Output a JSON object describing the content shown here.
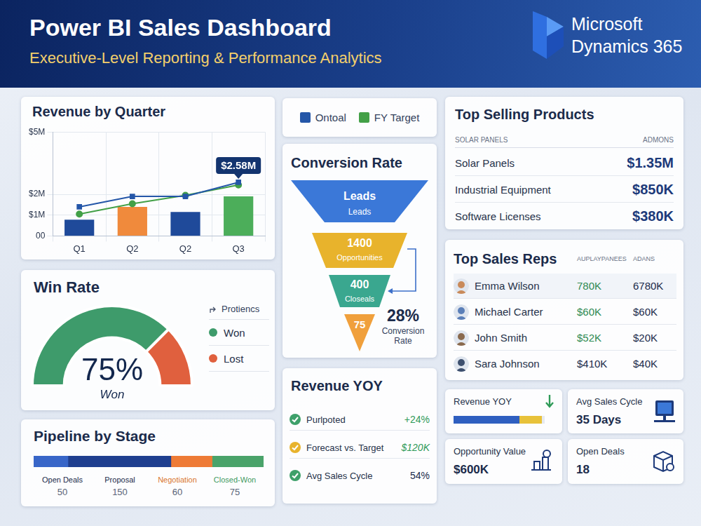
{
  "header": {
    "title": "Power BI Sales Dashboard",
    "subtitle": "Executive-Level Reporting & Performance Analytics",
    "logo": [
      "Microsoft",
      "Dynamics 365"
    ]
  },
  "chart_data": [
    {
      "type": "bar",
      "title": "Revenue by Quarter",
      "categories": [
        "Q1",
        "Q2",
        "Q2",
        "Q3"
      ],
      "values": [
        0.78,
        1.4,
        1.15,
        1.9
      ],
      "colors": [
        "#1f4a9a",
        "#f08a3c",
        "#1f4a9a",
        "#4cae5a"
      ],
      "series": [
        {
          "name": "Ontoal",
          "type": "line",
          "color": "#2456a8",
          "marker": "square",
          "values": [
            1.4,
            1.9,
            1.9,
            2.58
          ]
        },
        {
          "name": "FY Target",
          "type": "line",
          "color": "#43a047",
          "marker": "circle",
          "values": [
            1.05,
            1.55,
            1.95,
            2.45
          ]
        }
      ],
      "annotations": [
        {
          "text": "$2.58M",
          "x": "Q3",
          "y": 2.58
        }
      ],
      "ylim": [
        0,
        5
      ],
      "yticks": [
        {
          "value": 0,
          "label": "00"
        },
        {
          "value": 1,
          "label": "$1M"
        },
        {
          "value": 2,
          "label": "$2M"
        },
        {
          "value": 5,
          "label": "$5M"
        }
      ],
      "grid": true
    },
    {
      "type": "gauge",
      "title": "Win Rate",
      "categories": [
        "Won",
        "Lost"
      ],
      "values": [
        75,
        25
      ],
      "value_labels": [
        "75%",
        null
      ],
      "colors": [
        "#3e9b6b",
        "#e0603e"
      ],
      "legend_title": "Protiencs"
    },
    {
      "type": "bar",
      "title": "Pipeline by Stage",
      "orientation": "horizontal",
      "stacked": true,
      "tick_labels": false,
      "xlim": [
        0,
        335
      ],
      "series": [
        {
          "name": "Open Deals",
          "color": "#3866c8",
          "values": [
            50
          ]
        },
        {
          "name": "Proposal",
          "color": "#1f3f8f",
          "values": [
            150
          ]
        },
        {
          "name": "Negotiation",
          "color": "#ee7b36",
          "values": [
            60
          ]
        },
        {
          "name": "Closed-Won",
          "color": "#4aa36a",
          "values": [
            75
          ]
        }
      ]
    }
  ],
  "conversion": {
    "title": "Conversion Rate",
    "stages": [
      [
        "Leads",
        "Leads"
      ],
      [
        "1400",
        "Opportunities"
      ],
      [
        "400",
        "Closeals"
      ],
      [
        "75"
      ]
    ],
    "rate": "28%",
    "rate_label": "Conversion Rate"
  },
  "top_products": {
    "title": "Top Selling Products",
    "columns": [
      "SOLAR PANELS",
      "ADMONS"
    ],
    "rows": [
      [
        "Solar Panels",
        "$1.35M"
      ],
      [
        "Industrial Equipment",
        "$850K"
      ],
      [
        "Software Licenses",
        "$380K"
      ]
    ]
  },
  "top_reps": {
    "title": "Top Sales Reps",
    "columns": [
      "AUPLAYPANEES",
      "ADANS"
    ],
    "rows": [
      [
        "Emma Wilson",
        "780K",
        "6780K"
      ],
      [
        "Michael Carter",
        "$60K",
        "$60K"
      ],
      [
        "John Smith",
        "$52K",
        "$20K"
      ],
      [
        "Sara Johnson",
        "$410K",
        "$40K"
      ]
    ]
  },
  "revenue_yoy": {
    "title": "Revenue YOY",
    "rows": [
      [
        "Purlpoted",
        "+24%"
      ],
      [
        "Forecast vs. Target",
        "$120K"
      ],
      [
        "Avg Sales Cycle",
        "54%"
      ]
    ]
  },
  "kpis": [
    {
      "label": "Revenue YOY"
    },
    {
      "label": "Avg Sales Cycle",
      "value": "35 Days"
    },
    {
      "label": "Opportunity Value",
      "value": "$600K"
    },
    {
      "label": "Open Deals",
      "value": "18"
    }
  ]
}
